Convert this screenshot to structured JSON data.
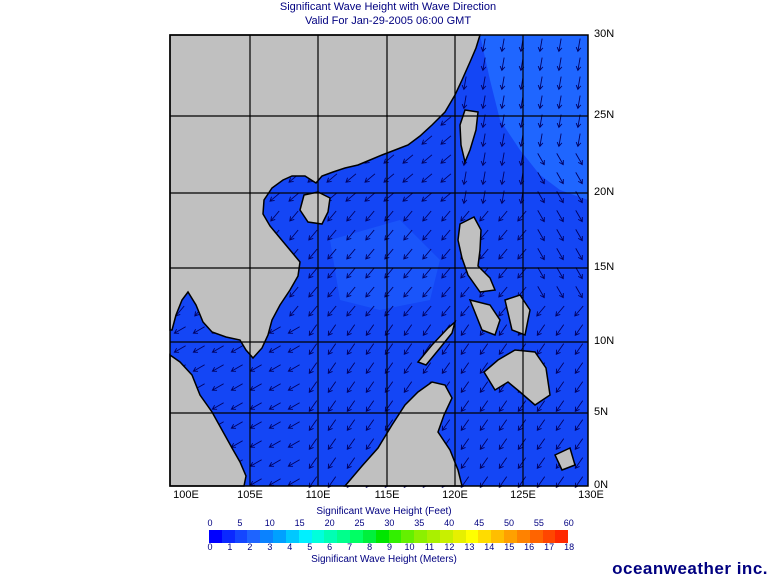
{
  "title": {
    "line1": "Significant Wave Height with Wave Direction",
    "line2": "Valid For Jan-29-2005 06:00 GMT"
  },
  "map": {
    "lon_labels": [
      "100E",
      "105E",
      "110E",
      "115E",
      "120E",
      "125E",
      "130E"
    ],
    "lat_labels": [
      "30N",
      "25N",
      "20N",
      "15N",
      "10N",
      "5N",
      "0N"
    ],
    "colors": {
      "land": "#c0c0c0",
      "sea": "#1446f5",
      "sea_light": "#1f66ff",
      "arrow": "#000060",
      "coast": "#000000"
    }
  },
  "legend": {
    "feet_title": "Significant Wave Height (Feet)",
    "meters_title": "Significant Wave Height (Meters)",
    "feet_ticks": [
      "0",
      "5",
      "10",
      "15",
      "20",
      "25",
      "30",
      "35",
      "40",
      "45",
      "50",
      "55",
      "60"
    ],
    "meter_ticks": [
      "0",
      "1",
      "2",
      "3",
      "4",
      "5",
      "6",
      "7",
      "8",
      "9",
      "10",
      "11",
      "12",
      "13",
      "14",
      "15",
      "16",
      "17",
      "18"
    ],
    "colors": [
      "#0000ff",
      "#0a28ff",
      "#1446ff",
      "#1e64ff",
      "#0a82ff",
      "#00a0ff",
      "#00c8ff",
      "#00f0ff",
      "#00ffdc",
      "#00ffb4",
      "#00ff8c",
      "#00ff64",
      "#00f03c",
      "#00e600",
      "#32f000",
      "#64f000",
      "#8cf000",
      "#aaf000",
      "#c8f000",
      "#e6f000",
      "#ffff00",
      "#ffdc00",
      "#ffbe00",
      "#ffa000",
      "#ff8200",
      "#ff6400",
      "#ff4600",
      "#ff2800"
    ]
  },
  "logo": "oceanweather inc."
}
